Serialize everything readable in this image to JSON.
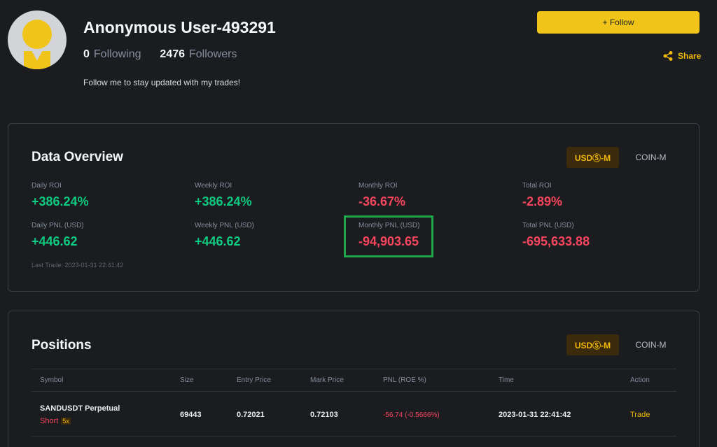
{
  "profile": {
    "username": "Anonymous User-493291",
    "following_count": "0",
    "following_label": "Following",
    "followers_count": "2476",
    "followers_label": "Followers",
    "bio": "Follow me to stay updated with my trades!"
  },
  "actions": {
    "follow_label": "+ Follow",
    "share_label": "Share"
  },
  "overview": {
    "title": "Data Overview",
    "tabs": [
      "USDⓈ-M",
      "COIN-M"
    ],
    "active_tab": "USDⓈ-M",
    "stats": {
      "daily_roi": {
        "label": "Daily ROI",
        "value": "+386.24%"
      },
      "weekly_roi": {
        "label": "Weekly ROI",
        "value": "+386.24%"
      },
      "monthly_roi": {
        "label": "Monthly ROI",
        "value": "-36.67%"
      },
      "total_roi": {
        "label": "Total ROI",
        "value": "-2.89%"
      },
      "daily_pnl": {
        "label": "Daily PNL (USD)",
        "value": "+446.62"
      },
      "weekly_pnl": {
        "label": "Weekly PNL (USD)",
        "value": "+446.62"
      },
      "monthly_pnl": {
        "label": "Monthly PNL (USD)",
        "value": "-94,903.65"
      },
      "total_pnl": {
        "label": "Total PNL (USD)",
        "value": "-695,633.88"
      }
    },
    "last_trade": "Last Trade: 2023-01-31 22:41:42"
  },
  "positions": {
    "title": "Positions",
    "tabs": [
      "USDⓈ-M",
      "COIN-M"
    ],
    "active_tab": "USDⓈ-M",
    "columns": [
      "Symbol",
      "Size",
      "Entry Price",
      "Mark Price",
      "PNL (ROE %)",
      "Time",
      "Action"
    ],
    "rows": [
      {
        "symbol": "SANDUSDT Perpetual",
        "side": "Short",
        "leverage": "5x",
        "size": "69443",
        "entry_price": "0.72021",
        "mark_price": "0.72103",
        "pnl": "-56.74 (-0.5666%)",
        "time": "2023-01-31 22:41:42",
        "action": "Trade"
      }
    ]
  },
  "colors": {
    "accent": "#f0b90b",
    "positive": "#0ecb81",
    "negative": "#f6465d",
    "highlight_box": "#1fa64a",
    "background": "#1b1c20"
  },
  "icons": {
    "share": "share-icon"
  }
}
